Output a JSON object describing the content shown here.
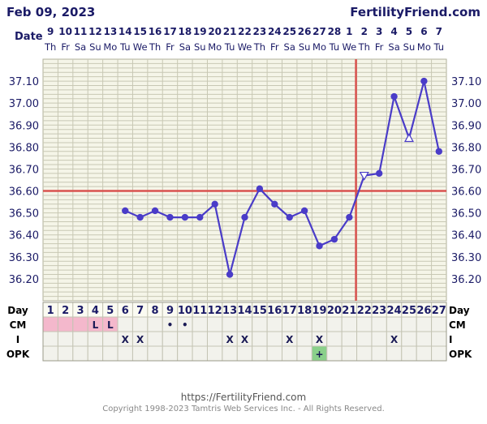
{
  "header": {
    "date": "Feb 09, 2023",
    "brand": "FertilityFriend.com"
  },
  "footer": {
    "url": "https://FertilityFriend.com",
    "copyright": "Copyright 1998-2023 Tamtris Web Services Inc. - All Rights Reserved."
  },
  "colors": {
    "grid_bg": "#f5f5e8",
    "grid_line": "#c8c8b4",
    "line": "#4a3cc8",
    "coverline": "#d9534f",
    "label": "#1a1a66",
    "period": "#f4b8cc",
    "opk_positive": "#8ad08a"
  },
  "chart_data": {
    "type": "line",
    "title": "",
    "row_labels": {
      "date": "Date",
      "day": "Day",
      "cm": "CM",
      "i": "I",
      "opk": "OPK"
    },
    "dates": [
      "9",
      "10",
      "11",
      "12",
      "13",
      "14",
      "15",
      "16",
      "17",
      "18",
      "19",
      "20",
      "21",
      "22",
      "23",
      "24",
      "25",
      "26",
      "27",
      "28",
      "1",
      "2",
      "3",
      "4",
      "5",
      "6",
      "7"
    ],
    "weekdays": [
      "Th",
      "Fr",
      "Sa",
      "Su",
      "Mo",
      "Tu",
      "We",
      "Th",
      "Fr",
      "Sa",
      "Su",
      "Mo",
      "Tu",
      "We",
      "Th",
      "Fr",
      "Sa",
      "Su",
      "Mo",
      "Tu",
      "We",
      "Th",
      "Fr",
      "Sa",
      "Su",
      "Mo",
      "Tu"
    ],
    "cycle_days": [
      1,
      2,
      3,
      4,
      5,
      6,
      7,
      8,
      9,
      10,
      11,
      12,
      13,
      14,
      15,
      16,
      17,
      18,
      19,
      20,
      21,
      22,
      23,
      24,
      25,
      26,
      27
    ],
    "y_ticks": [
      "37.10",
      "37.00",
      "36.90",
      "36.80",
      "36.70",
      "36.60",
      "36.50",
      "36.40",
      "36.30",
      "36.20"
    ],
    "ylim": [
      36.1,
      37.2
    ],
    "temperatures": [
      null,
      null,
      null,
      null,
      null,
      36.51,
      36.48,
      36.51,
      36.48,
      36.48,
      36.48,
      36.54,
      36.22,
      36.48,
      36.61,
      36.54,
      36.48,
      36.51,
      36.35,
      36.38,
      36.48,
      36.67,
      36.68,
      37.03,
      36.84,
      37.1,
      36.78
    ],
    "open_markers": {
      "22": "down",
      "25": "up"
    },
    "coverline": 36.6,
    "ovulation_day": 21,
    "period_days": [
      1,
      2,
      3,
      4,
      5
    ],
    "cm": [
      "",
      "",
      "",
      "L",
      "L",
      "",
      "",
      "",
      "•",
      "•",
      "",
      "",
      "",
      "",
      "",
      "",
      "",
      "",
      "",
      "",
      "",
      "",
      "",
      "",
      "",
      "",
      ""
    ],
    "intercourse": [
      "",
      "",
      "",
      "",
      "",
      "X",
      "X",
      "",
      "",
      "",
      "",
      "",
      "X",
      "X",
      "",
      "",
      "X",
      "",
      "X",
      "",
      "",
      "",
      "",
      "X",
      "",
      "",
      ""
    ],
    "opk": [
      "",
      "",
      "",
      "",
      "",
      "",
      "",
      "",
      "",
      "",
      "",
      "",
      "",
      "",
      "",
      "",
      "",
      "",
      "+",
      "",
      "",
      "",
      "",
      "",
      "",
      "",
      ""
    ]
  }
}
